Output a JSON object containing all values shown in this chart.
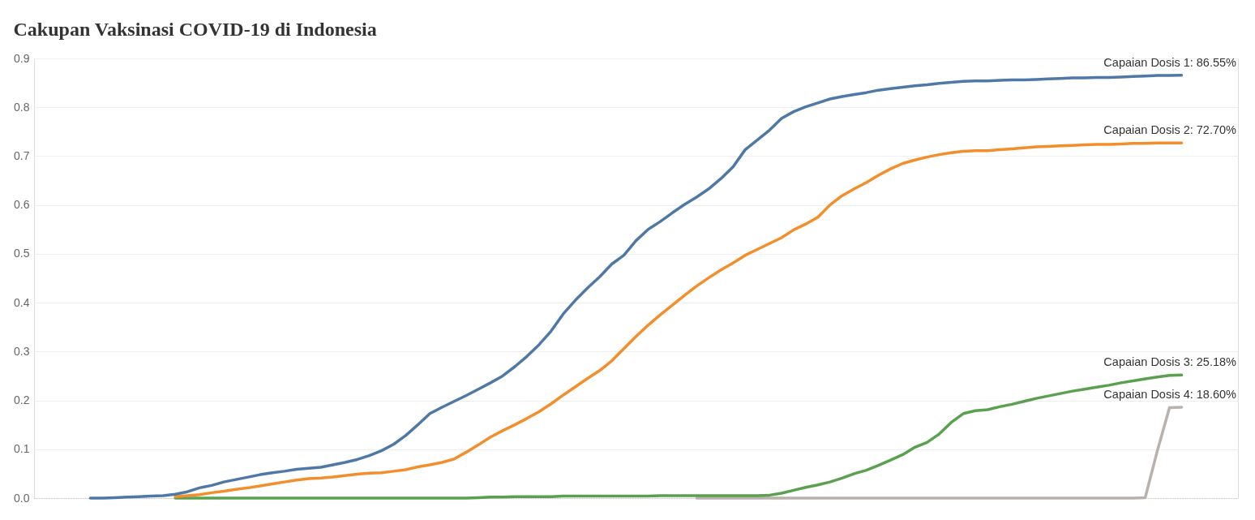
{
  "chart_data": {
    "type": "line",
    "title": "Cakupan Vaksinasi COVID-19 di Indonesia",
    "categories": [
      null,
      null,
      null,
      null,
      null,
      null,
      null,
      null,
      null,
      null,
      null,
      null,
      null,
      null,
      null,
      null,
      null,
      null,
      null,
      null,
      null,
      null,
      null,
      null,
      null,
      null,
      null,
      null,
      null,
      null,
      null,
      null,
      null,
      null,
      null,
      null,
      null,
      null,
      null,
      null,
      null,
      null,
      null,
      null,
      null,
      null,
      null,
      null,
      null,
      null,
      null,
      null,
      null,
      null,
      null,
      null,
      null,
      null,
      null,
      null,
      null,
      null,
      null,
      null,
      null,
      null,
      null,
      null,
      null,
      null,
      null,
      null,
      null,
      null,
      null,
      null,
      null,
      null,
      null,
      null,
      null,
      null,
      null,
      null,
      null,
      null,
      null,
      null,
      null,
      null,
      null
    ],
    "series": [
      {
        "color": "#4e79a7",
        "values": [
          0.0,
          0.0,
          0.001,
          0.002,
          0.003,
          0.004,
          0.005,
          0.008,
          0.013,
          0.021,
          0.026,
          0.033,
          0.038,
          0.043,
          0.048,
          0.052,
          0.055,
          0.059,
          0.061,
          0.063,
          0.068,
          0.073,
          0.079,
          0.087,
          0.097,
          0.11,
          0.128,
          0.15,
          0.173,
          0.186,
          0.198,
          0.21,
          0.223,
          0.236,
          0.25,
          0.269,
          0.29,
          0.314,
          0.342,
          0.377,
          0.405,
          0.43,
          0.453,
          0.479,
          0.497,
          0.527,
          0.55,
          0.566,
          0.584,
          0.601,
          0.616,
          0.633,
          0.654,
          0.678,
          0.713,
          0.733,
          0.753,
          0.777,
          0.791,
          0.801,
          0.809,
          0.817,
          0.822,
          0.826,
          0.83,
          0.835,
          0.838,
          0.841,
          0.844,
          0.846,
          0.849,
          0.851,
          0.853,
          0.854,
          0.854,
          0.855,
          0.856,
          0.856,
          0.857,
          0.858,
          0.859,
          0.86,
          0.86,
          0.861,
          0.861,
          0.862,
          0.863,
          0.864,
          0.865,
          0.865,
          0.8655
        ]
      },
      {
        "color": "#f28e2b",
        "values": [
          null,
          null,
          null,
          null,
          null,
          null,
          null,
          0.003,
          0.005,
          0.007,
          0.011,
          0.014,
          0.018,
          0.021,
          0.025,
          0.029,
          0.033,
          0.037,
          0.04,
          0.041,
          0.043,
          0.046,
          0.049,
          0.051,
          0.052,
          0.055,
          0.058,
          0.064,
          0.068,
          0.073,
          0.08,
          0.094,
          0.109,
          0.125,
          0.138,
          0.15,
          0.163,
          0.177,
          0.193,
          0.211,
          0.228,
          0.245,
          0.261,
          0.281,
          0.306,
          0.331,
          0.354,
          0.375,
          0.395,
          0.415,
          0.434,
          0.451,
          0.467,
          0.481,
          0.497,
          0.509,
          0.521,
          0.533,
          0.549,
          0.561,
          0.575,
          0.6,
          0.619,
          0.633,
          0.646,
          0.661,
          0.674,
          0.685,
          0.692,
          0.698,
          0.703,
          0.707,
          0.71,
          0.711,
          0.711,
          0.713,
          0.715,
          0.717,
          0.719,
          0.72,
          0.721,
          0.722,
          0.723,
          0.724,
          0.724,
          0.725,
          0.726,
          0.726,
          0.727,
          0.727,
          0.727
        ]
      },
      {
        "color": "#59a14f",
        "values": [
          null,
          null,
          null,
          null,
          null,
          null,
          null,
          0.0,
          0.0,
          0.0,
          0.0,
          0.0,
          0.0,
          0.0,
          0.0,
          0.0,
          0.0,
          0.0,
          0.0,
          0.0,
          0.0,
          0.0,
          0.0,
          0.0,
          0.0,
          0.0,
          0.0,
          0.0,
          0.0,
          0.0,
          0.0,
          0.0,
          0.001,
          0.002,
          0.002,
          0.003,
          0.003,
          0.003,
          0.003,
          0.004,
          0.004,
          0.004,
          0.004,
          0.004,
          0.004,
          0.004,
          0.004,
          0.005,
          0.005,
          0.005,
          0.005,
          0.005,
          0.005,
          0.005,
          0.005,
          0.005,
          0.006,
          0.01,
          0.016,
          0.022,
          0.027,
          0.033,
          0.041,
          0.05,
          0.057,
          0.067,
          0.078,
          0.089,
          0.104,
          0.114,
          0.131,
          0.155,
          0.173,
          0.179,
          0.181,
          0.187,
          0.192,
          0.198,
          0.204,
          0.209,
          0.214,
          0.219,
          0.223,
          0.227,
          0.231,
          0.236,
          0.24,
          0.244,
          0.248,
          0.251,
          0.2518
        ]
      },
      {
        "color": "#bab0ac",
        "values": [
          null,
          null,
          null,
          null,
          null,
          null,
          null,
          null,
          null,
          null,
          null,
          null,
          null,
          null,
          null,
          null,
          null,
          null,
          null,
          null,
          null,
          null,
          null,
          null,
          null,
          null,
          null,
          null,
          null,
          null,
          null,
          null,
          null,
          null,
          null,
          null,
          null,
          null,
          null,
          null,
          null,
          null,
          null,
          null,
          null,
          null,
          null,
          null,
          null,
          null,
          0.0,
          0.0,
          0.0,
          0.0,
          0.0,
          0.0,
          0.0,
          0.0,
          0.0,
          0.0,
          0.0,
          0.0,
          0.0,
          0.0,
          0.0,
          0.0,
          0.0,
          0.0,
          0.0,
          0.0,
          0.0,
          0.0,
          0.0,
          0.0,
          0.0,
          0.0,
          0.0,
          0.0,
          0.0,
          0.0,
          0.0,
          0.0,
          0.0,
          0.0,
          0.0,
          0.0,
          0.0,
          0.001,
          0.097,
          0.185,
          0.186
        ]
      }
    ],
    "ylim": [
      0,
      0.9
    ],
    "yticks": [
      {
        "value": 0,
        "label": "0.0"
      },
      0.1,
      0.2,
      0.3,
      0.4,
      0.5,
      0.6,
      0.7,
      0.8,
      0.9
    ],
    "grid": "y",
    "tick_labels": "y",
    "line_style": "solid",
    "annotations": [
      {
        "text": "Capaian Dosis 1: 86.55%",
        "y": 0.8655
      },
      {
        "text": "Capaian Dosis 2: 72.70%",
        "y": 0.727
      },
      {
        "text": "Capaian Dosis 3: 25.18%",
        "y": 0.2518
      },
      {
        "text": "Capaian Dosis 4: 18.60%",
        "y": 0.186
      }
    ]
  }
}
